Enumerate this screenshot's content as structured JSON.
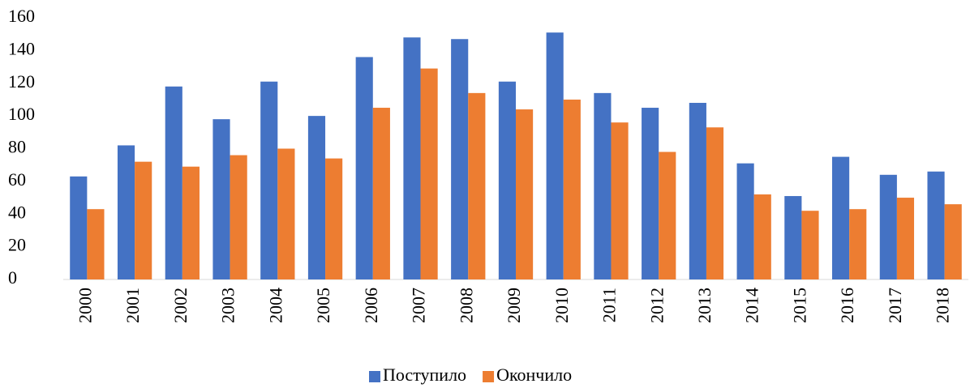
{
  "chart_data": {
    "type": "bar",
    "categories": [
      "2000",
      "2001",
      "2002",
      "2003",
      "2004",
      "2005",
      "2006",
      "2007",
      "2008",
      "2009",
      "2010",
      "2011",
      "2012",
      "2013",
      "2014",
      "2015",
      "2016",
      "2017",
      "2018"
    ],
    "series": [
      {
        "name": "Поступило",
        "color": "#4472c4",
        "values": [
          63,
          82,
          118,
          98,
          121,
          100,
          136,
          148,
          147,
          121,
          151,
          114,
          105,
          108,
          71,
          51,
          75,
          64,
          66
        ]
      },
      {
        "name": "Окончило",
        "color": "#ed7d31",
        "values": [
          43,
          72,
          69,
          76,
          80,
          74,
          105,
          129,
          114,
          104,
          110,
          96,
          78,
          93,
          52,
          42,
          43,
          50,
          46
        ]
      }
    ],
    "ylim": [
      0,
      160
    ],
    "yticks": [
      0,
      20,
      40,
      60,
      80,
      100,
      120,
      140,
      160
    ],
    "grid": false,
    "legend": "bottom"
  }
}
